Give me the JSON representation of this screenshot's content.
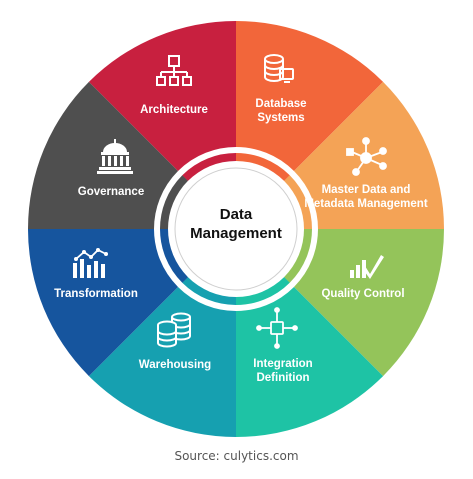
{
  "center": {
    "line1": "Data",
    "line2": "Management"
  },
  "segments": [
    {
      "name": "architecture",
      "lines": [
        "Architecture"
      ],
      "color": "#C8203F",
      "icon": "hierarchy-icon"
    },
    {
      "name": "database-systems",
      "lines": [
        "Database",
        "Systems"
      ],
      "color": "#F2663A",
      "icon": "database-icon"
    },
    {
      "name": "master-data",
      "lines": [
        "Master Data and",
        "Metadata Management"
      ],
      "color": "#F4A356",
      "icon": "network-hub-icon"
    },
    {
      "name": "quality-control",
      "lines": [
        "Quality Control"
      ],
      "color": "#94C45A",
      "icon": "bar-check-icon"
    },
    {
      "name": "integration-definition",
      "lines": [
        "Integration",
        "Definition"
      ],
      "color": "#1EC3A5",
      "icon": "integration-icon"
    },
    {
      "name": "warehousing",
      "lines": [
        "Warehousing"
      ],
      "color": "#16A0B0",
      "icon": "database-stack-icon"
    },
    {
      "name": "transformation",
      "lines": [
        "Transformation"
      ],
      "color": "#16559E",
      "icon": "chart-trend-icon"
    },
    {
      "name": "governance",
      "lines": [
        "Governance"
      ],
      "color": "#4F4F4F",
      "icon": "capitol-icon"
    }
  ],
  "source": "Source: culytics.com"
}
